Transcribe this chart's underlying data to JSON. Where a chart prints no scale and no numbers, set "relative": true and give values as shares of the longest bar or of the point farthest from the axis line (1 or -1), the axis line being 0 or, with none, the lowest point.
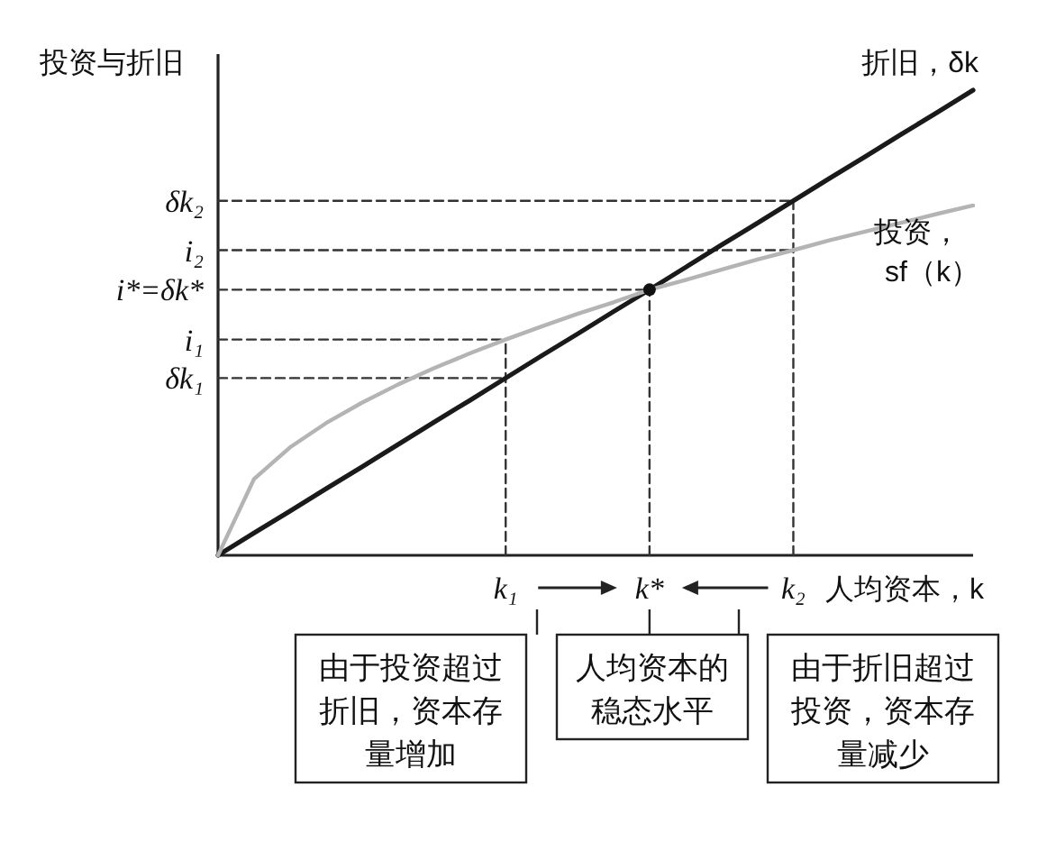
{
  "chart_data": {
    "type": "line",
    "relative": true,
    "ylabel": "投资与折旧",
    "xlabel": "人均资本，k",
    "categories": [
      null,
      null,
      null,
      null,
      null,
      null,
      null,
      null,
      "k₁",
      null,
      null,
      null,
      "k*",
      null,
      null,
      null,
      "k₂",
      null,
      null,
      null,
      null,
      null
    ],
    "series": [
      {
        "name": "折旧，δk",
        "color": "#1a1a1a",
        "values": [
          0,
          0.048,
          0.095,
          0.143,
          0.19,
          0.238,
          0.286,
          0.333,
          0.381,
          0.429,
          0.476,
          0.524,
          0.571,
          0.619,
          0.667,
          0.714,
          0.762,
          0.81,
          0.857,
          0.905,
          0.952,
          1
        ]
      },
      {
        "name": "投资，sf（k）",
        "color": "#b4b4b4",
        "values": [
          0,
          0.164,
          0.232,
          0.284,
          0.328,
          0.367,
          0.402,
          0.434,
          0.464,
          0.492,
          0.519,
          0.544,
          0.571,
          0.592,
          0.614,
          0.636,
          0.656,
          0.677,
          0.696,
          0.715,
          0.734,
          0.752
        ]
      },
      {
        "color": "#333333",
        "line_style": "dashed",
        "values": [
          0.381,
          0.381,
          0.381,
          0.381,
          0.381,
          0.381,
          0.381,
          0.381,
          0.381,
          null,
          null,
          null,
          null,
          null,
          null,
          null,
          null,
          null,
          null,
          null,
          null,
          null
        ]
      },
      {
        "color": "#333333",
        "line_style": "dashed",
        "values": [
          0.464,
          0.464,
          0.464,
          0.464,
          0.464,
          0.464,
          0.464,
          0.464,
          0.464,
          null,
          null,
          null,
          null,
          null,
          null,
          null,
          null,
          null,
          null,
          null,
          null,
          null
        ]
      },
      {
        "color": "#333333",
        "line_style": "dashed",
        "values": [
          0.571,
          0.571,
          0.571,
          0.571,
          0.571,
          0.571,
          0.571,
          0.571,
          0.571,
          0.571,
          0.571,
          0.571,
          0.571,
          null,
          null,
          null,
          null,
          null,
          null,
          null,
          null,
          null
        ]
      },
      {
        "color": "#333333",
        "line_style": "dashed",
        "values": [
          0.656,
          0.656,
          0.656,
          0.656,
          0.656,
          0.656,
          0.656,
          0.656,
          0.656,
          0.656,
          0.656,
          0.656,
          0.656,
          0.656,
          0.656,
          0.656,
          0.656,
          null,
          null,
          null,
          null,
          null
        ]
      },
      {
        "color": "#333333",
        "line_style": "dashed",
        "values": [
          0.762,
          0.762,
          0.762,
          0.762,
          0.762,
          0.762,
          0.762,
          0.762,
          0.762,
          0.762,
          0.762,
          0.762,
          0.762,
          0.762,
          0.762,
          0.762,
          0.762,
          null,
          null,
          null,
          null,
          null
        ]
      },
      {
        "color": "#333333",
        "line_style": "dashed",
        "x": [
          "k₁",
          "k₁"
        ],
        "values": [
          0,
          0.464
        ]
      },
      {
        "color": "#333333",
        "line_style": "dashed",
        "x": [
          "k*",
          "k*"
        ],
        "values": [
          0,
          0.571
        ]
      },
      {
        "color": "#333333",
        "line_style": "dashed",
        "x": [
          "k₂",
          "k₂"
        ],
        "values": [
          0,
          0.762
        ]
      },
      {
        "type": "scatter",
        "marker": "circle",
        "color": "#111111",
        "x": [
          "k*"
        ],
        "values": [
          0.571
        ]
      }
    ],
    "annotations": [
      "δk₁",
      "i₁",
      "i*=δk*",
      "i₂",
      "δk₂",
      "由于投资超过折旧，资本存量增加",
      "人均资本的稳态水平",
      "由于折旧超过投资，资本存量减少"
    ]
  }
}
